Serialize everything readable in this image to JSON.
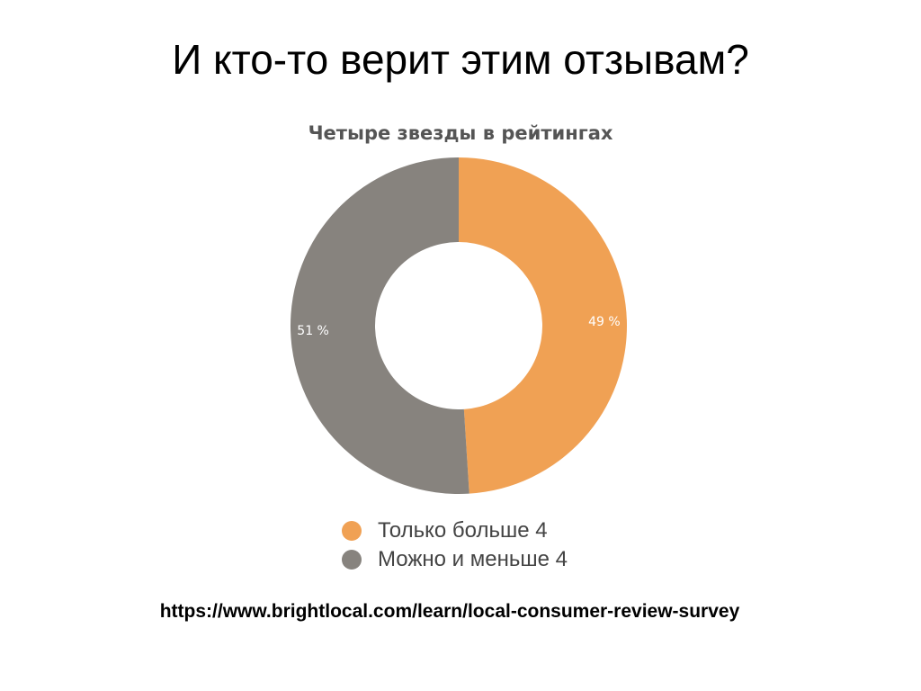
{
  "slide": {
    "title": "И кто-то верит этим отзывам?",
    "source_url": "https://www.brightlocal.com/learn/local-consumer-review-survey"
  },
  "chart_data": {
    "type": "pie",
    "donut": true,
    "title": "Четыре звезды в рейтингах",
    "legend_position": "bottom",
    "slices": [
      {
        "label": "Только больше 4",
        "value": 49,
        "value_label": "49 %",
        "color": "#F0A154"
      },
      {
        "label": "Можно и меньше 4",
        "value": 51,
        "value_label": "51 %",
        "color": "#87837E"
      }
    ]
  }
}
